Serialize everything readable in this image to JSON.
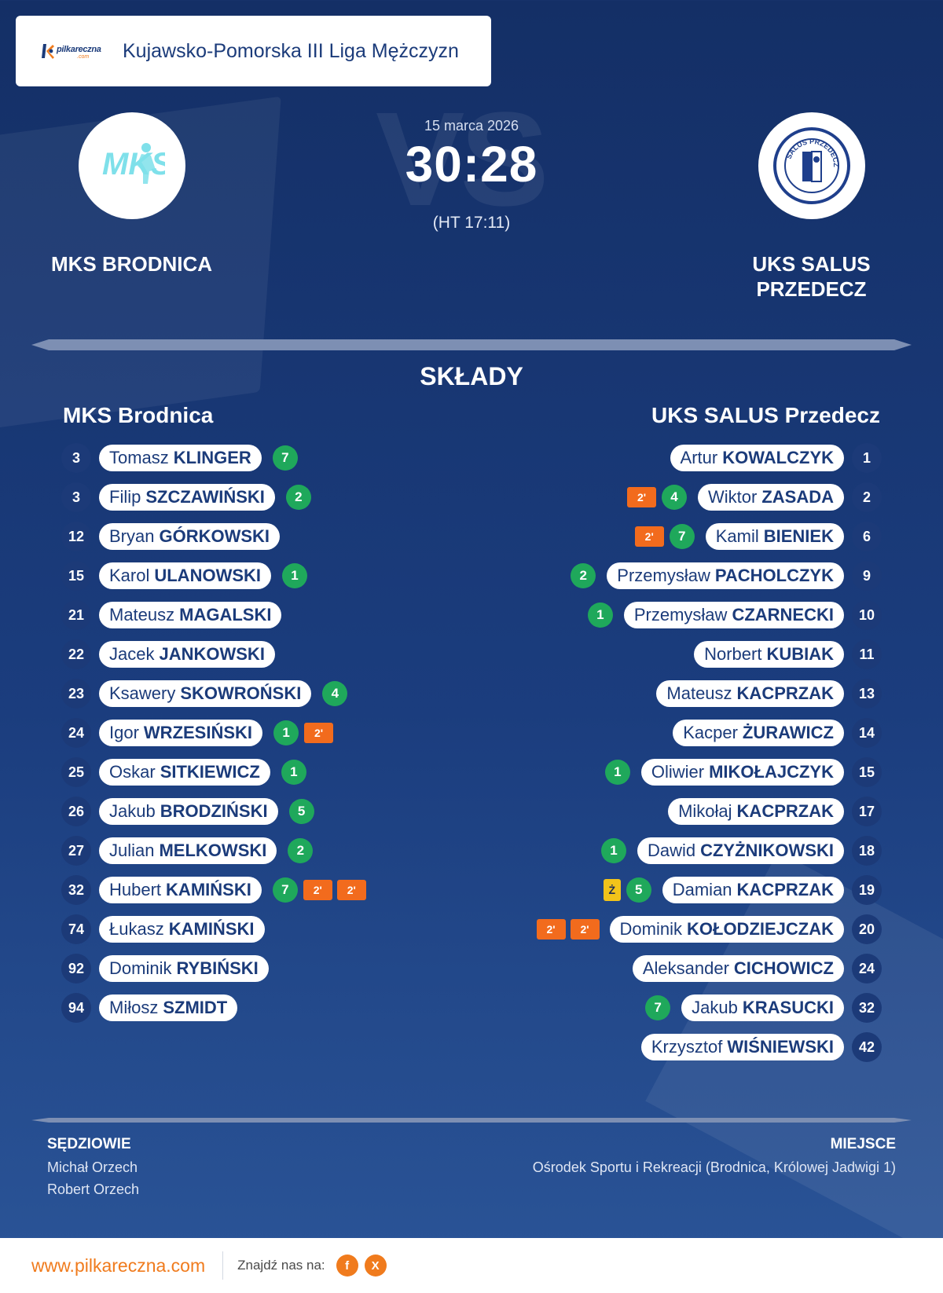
{
  "header": {
    "logo_text": "pilkareczna",
    "logo_suffix": ".com",
    "league": "Kujawsko-Pomorska III Liga Mężczyzn"
  },
  "match": {
    "date": "15 marca 2026",
    "score": "30:28",
    "halftime": "(HT 17:11)",
    "watermark": "VS",
    "home_team": "MKS BRODNICA",
    "away_team": "UKS SALUS PRZEDECZ",
    "home_badge_text": "MKS",
    "away_badge_text": "SALUS PRZEDECZ"
  },
  "lineups": {
    "title": "SKŁADY",
    "home_title": "MKS Brodnica",
    "away_title": "UKS SALUS Przedecz",
    "home": [
      {
        "number": "3",
        "first": "Tomasz",
        "last": "KLINGER",
        "goals": "7",
        "suspensions": [],
        "yellow": ""
      },
      {
        "number": "3",
        "first": "Filip",
        "last": "SZCZAWIŃSKI",
        "goals": "2",
        "suspensions": [],
        "yellow": ""
      },
      {
        "number": "12",
        "first": "Bryan",
        "last": "GÓRKOWSKI",
        "goals": "",
        "suspensions": [],
        "yellow": ""
      },
      {
        "number": "15",
        "first": "Karol",
        "last": "ULANOWSKI",
        "goals": "1",
        "suspensions": [],
        "yellow": ""
      },
      {
        "number": "21",
        "first": "Mateusz",
        "last": "MAGALSKI",
        "goals": "",
        "suspensions": [],
        "yellow": ""
      },
      {
        "number": "22",
        "first": "Jacek",
        "last": "JANKOWSKI",
        "goals": "",
        "suspensions": [],
        "yellow": ""
      },
      {
        "number": "23",
        "first": "Ksawery",
        "last": "SKOWROŃSKI",
        "goals": "4",
        "suspensions": [],
        "yellow": ""
      },
      {
        "number": "24",
        "first": "Igor",
        "last": "WRZESIŃSKI",
        "goals": "1",
        "suspensions": [
          "2'"
        ],
        "yellow": ""
      },
      {
        "number": "25",
        "first": "Oskar",
        "last": "SITKIEWICZ",
        "goals": "1",
        "suspensions": [],
        "yellow": ""
      },
      {
        "number": "26",
        "first": "Jakub",
        "last": "BRODZIŃSKI",
        "goals": "5",
        "suspensions": [],
        "yellow": ""
      },
      {
        "number": "27",
        "first": "Julian",
        "last": "MELKOWSKI",
        "goals": "2",
        "suspensions": [],
        "yellow": ""
      },
      {
        "number": "32",
        "first": "Hubert",
        "last": "KAMIŃSKI",
        "goals": "7",
        "suspensions": [
          "2'",
          "2'"
        ],
        "yellow": ""
      },
      {
        "number": "74",
        "first": "Łukasz",
        "last": "KAMIŃSKI",
        "goals": "",
        "suspensions": [],
        "yellow": ""
      },
      {
        "number": "92",
        "first": "Dominik",
        "last": "RYBIŃSKI",
        "goals": "",
        "suspensions": [],
        "yellow": ""
      },
      {
        "number": "94",
        "first": "Miłosz",
        "last": "SZMIDT",
        "goals": "",
        "suspensions": [],
        "yellow": ""
      }
    ],
    "away": [
      {
        "number": "1",
        "first": "Artur",
        "last": "KOWALCZYK",
        "goals": "",
        "suspensions": [],
        "yellow": ""
      },
      {
        "number": "2",
        "first": "Wiktor",
        "last": "ZASADA",
        "goals": "4",
        "suspensions": [
          "2'"
        ],
        "yellow": ""
      },
      {
        "number": "6",
        "first": "Kamil",
        "last": "BIENIEK",
        "goals": "7",
        "suspensions": [
          "2'"
        ],
        "yellow": ""
      },
      {
        "number": "9",
        "first": "Przemysław",
        "last": "PACHOLCZYK",
        "goals": "2",
        "suspensions": [],
        "yellow": ""
      },
      {
        "number": "10",
        "first": "Przemysław",
        "last": "CZARNECKI",
        "goals": "1",
        "suspensions": [],
        "yellow": ""
      },
      {
        "number": "11",
        "first": "Norbert",
        "last": "KUBIAK",
        "goals": "",
        "suspensions": [],
        "yellow": ""
      },
      {
        "number": "13",
        "first": "Mateusz",
        "last": "KACPRZAK",
        "goals": "",
        "suspensions": [],
        "yellow": ""
      },
      {
        "number": "14",
        "first": "Kacper",
        "last": "ŻURAWICZ",
        "goals": "",
        "suspensions": [],
        "yellow": ""
      },
      {
        "number": "15",
        "first": "Oliwier",
        "last": "MIKOŁAJCZYK",
        "goals": "1",
        "suspensions": [],
        "yellow": ""
      },
      {
        "number": "17",
        "first": "Mikołaj",
        "last": "KACPRZAK",
        "goals": "",
        "suspensions": [],
        "yellow": ""
      },
      {
        "number": "18",
        "first": "Dawid",
        "last": "CZYŻNIKOWSKI",
        "goals": "1",
        "suspensions": [],
        "yellow": ""
      },
      {
        "number": "19",
        "first": "Damian",
        "last": "KACPRZAK",
        "goals": "5",
        "suspensions": [],
        "yellow": "Ż"
      },
      {
        "number": "20",
        "first": "Dominik",
        "last": "KOŁODZIEJCZAK",
        "goals": "",
        "suspensions": [
          "2'",
          "2'"
        ],
        "yellow": ""
      },
      {
        "number": "24",
        "first": "Aleksander",
        "last": "CICHOWICZ",
        "goals": "",
        "suspensions": [],
        "yellow": ""
      },
      {
        "number": "32",
        "first": "Jakub",
        "last": "KRASUCKI",
        "goals": "7",
        "suspensions": [],
        "yellow": ""
      },
      {
        "number": "42",
        "first": "Krzysztof",
        "last": "WIŚNIEWSKI",
        "goals": "",
        "suspensions": [],
        "yellow": ""
      }
    ]
  },
  "officials": {
    "referees_title": "SĘDZIOWIE",
    "referees": [
      "Michał Orzech",
      "Robert Orzech"
    ],
    "venue_title": "MIEJSCE",
    "venue": "Ośrodek Sportu i Rekreacji (Brodnica, Królowej Jadwigi 1)"
  },
  "footer": {
    "site": "www.pilkareczna.com",
    "find_us": "Znajdź nas na:",
    "facebook": "f",
    "x": "X"
  },
  "colors": {
    "background": "#1b3d7e",
    "goals": "#1fa85b",
    "suspension": "#f26b1d",
    "yellow_card": "#f2c31a",
    "accent": "#f07b1d"
  },
  "icons": [
    "league-logo-icon",
    "home-team-badge-icon",
    "away-team-badge-icon",
    "facebook-icon",
    "x-icon"
  ]
}
